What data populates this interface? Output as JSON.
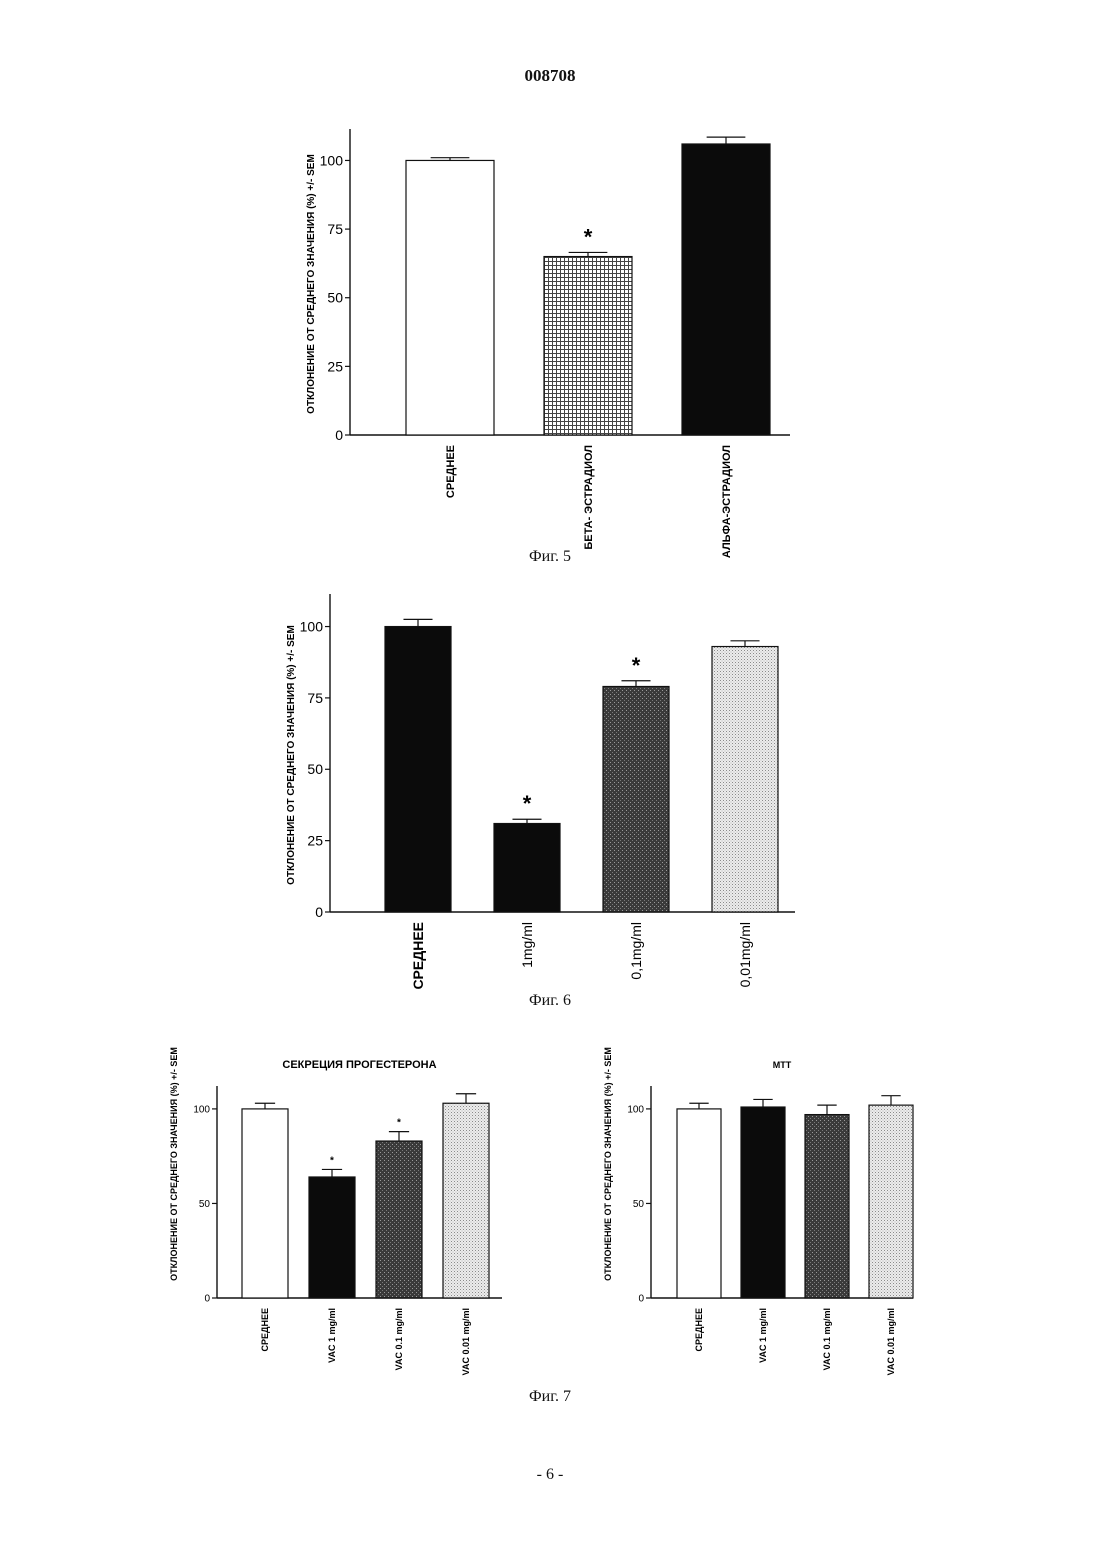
{
  "document": {
    "page_number": "008708",
    "footer": "- 6 -",
    "captions": [
      "Фиг. 5",
      "Фиг. 6",
      "Фиг. 7"
    ]
  },
  "chart_data": [
    {
      "type": "bar",
      "title": "",
      "ylabel": "ОТКЛОНЕНИЕ ОТ СРЕДНЕГО ЗНАЧЕНИЯ (%) +/- SEM",
      "categories": [
        "СРЕДНЕЕ",
        "БЕТА- ЭСТРАДИОЛ",
        "АЛЬФА-ЭСТРАДИОЛ"
      ],
      "values": [
        100,
        65,
        106
      ],
      "errors": [
        1,
        1.5,
        2.5
      ],
      "significance": [
        "",
        "*",
        ""
      ],
      "fill_patterns": [
        "white",
        "crosshatch",
        "black"
      ],
      "yticks": [
        0,
        25,
        50,
        75,
        100
      ],
      "ylim": [
        0,
        110
      ]
    },
    {
      "type": "bar",
      "title": "",
      "ylabel": "ОТКЛОНЕНИЕ ОТ СРЕДНЕГО ЗНАЧЕНИЯ (%) +/- SEM",
      "categories": [
        "СРЕДНЕЕ",
        "1mg/ml",
        "0,1mg/ml",
        "0,01mg/ml"
      ],
      "values": [
        100,
        31,
        79,
        93
      ],
      "errors": [
        2.5,
        1.5,
        2,
        2
      ],
      "significance": [
        "",
        "*",
        "*",
        ""
      ],
      "fill_patterns": [
        "black",
        "black",
        "darkgray",
        "lightgray"
      ],
      "yticks": [
        0,
        25,
        50,
        75,
        100
      ],
      "ylim": [
        0,
        110
      ]
    },
    {
      "type": "bar",
      "title": "СЕКРЕЦИЯ ПРОГЕСТЕРОНА",
      "ylabel": "ОТКЛОНЕНИЕ ОТ СРЕДНЕГО ЗНАЧЕНИЯ (%) +/- SEM",
      "categories": [
        "СРЕДНЕЕ",
        "VAC 1 mg/ml",
        "VAC 0.1 mg/ml",
        "VAC 0.01 mg/ml"
      ],
      "values": [
        100,
        64,
        83,
        103
      ],
      "errors": [
        3,
        4,
        5,
        5
      ],
      "significance": [
        "",
        "*",
        "*",
        ""
      ],
      "fill_patterns": [
        "white",
        "black",
        "darkgray",
        "lightgray"
      ],
      "yticks": [
        0,
        50,
        100
      ],
      "ylim": [
        0,
        110
      ]
    },
    {
      "type": "bar",
      "title": "MTT",
      "ylabel": "ОТКЛОНЕНИЕ ОТ СРЕДНЕГО ЗНАЧЕНИЯ (%) +/- SEM",
      "categories": [
        "СРЕДНЕЕ",
        "VAC 1 mg/ml",
        "VAC 0.1 mg/ml",
        "VAC 0.01 mg/ml"
      ],
      "values": [
        100,
        101,
        97,
        102
      ],
      "errors": [
        3,
        4,
        5,
        5
      ],
      "significance": [
        "",
        "",
        "",
        ""
      ],
      "fill_patterns": [
        "white",
        "black",
        "darkgray",
        "lightgray"
      ],
      "yticks": [
        0,
        50,
        100
      ],
      "ylim": [
        0,
        110
      ]
    }
  ]
}
